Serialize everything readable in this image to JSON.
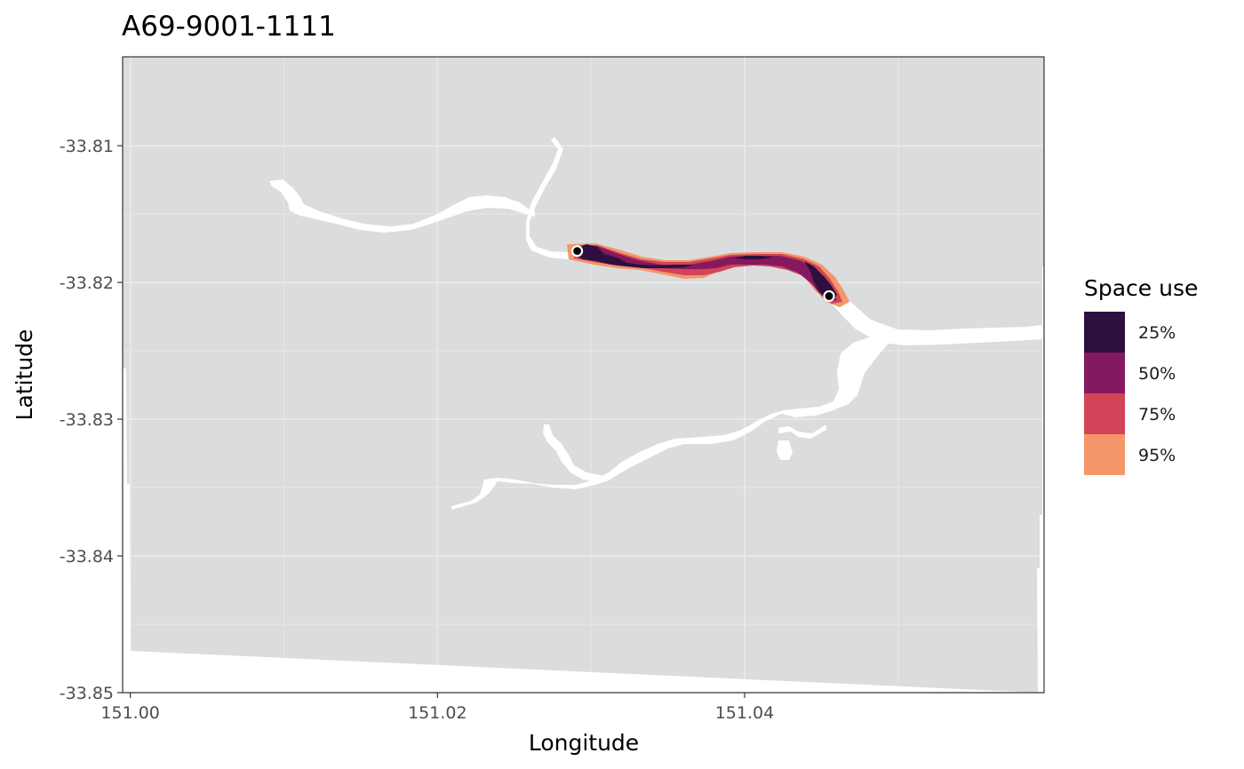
{
  "chart_data": {
    "type": "map",
    "title": "A69-9001-1111",
    "xlabel": "Longitude",
    "ylabel": "Latitude",
    "xlim": [
      150.9995,
      151.0595
    ],
    "ylim": [
      -33.85,
      -33.8035
    ],
    "x_ticks": [
      {
        "value": 151.0,
        "label": "151.00"
      },
      {
        "value": 151.02,
        "label": "151.02"
      },
      {
        "value": 151.04,
        "label": "151.04"
      }
    ],
    "y_ticks": [
      {
        "value": -33.81,
        "label": "-33.81"
      },
      {
        "value": -33.82,
        "label": "-33.82"
      },
      {
        "value": -33.83,
        "label": "-33.83"
      },
      {
        "value": -33.84,
        "label": "-33.84"
      },
      {
        "value": -33.85,
        "label": "-33.85"
      }
    ],
    "grid": true,
    "legend": {
      "title": "Space use",
      "position": "right",
      "entries": [
        {
          "label": "25%",
          "color": "#2d1040"
        },
        {
          "label": "50%",
          "color": "#85195f"
        },
        {
          "label": "75%",
          "color": "#d24457"
        },
        {
          "label": "95%",
          "color": "#f3976a"
        }
      ]
    },
    "colors": {
      "land": "#dbdcde",
      "water": "#ffffff",
      "grid": "#e8e8ea",
      "marker_stroke": "#ffffff",
      "marker_fill": "#000000"
    },
    "receivers": [
      {
        "lon": 151.0291,
        "lat": -33.8177
      },
      {
        "lon": 151.0455,
        "lat": -33.821
      }
    ]
  }
}
